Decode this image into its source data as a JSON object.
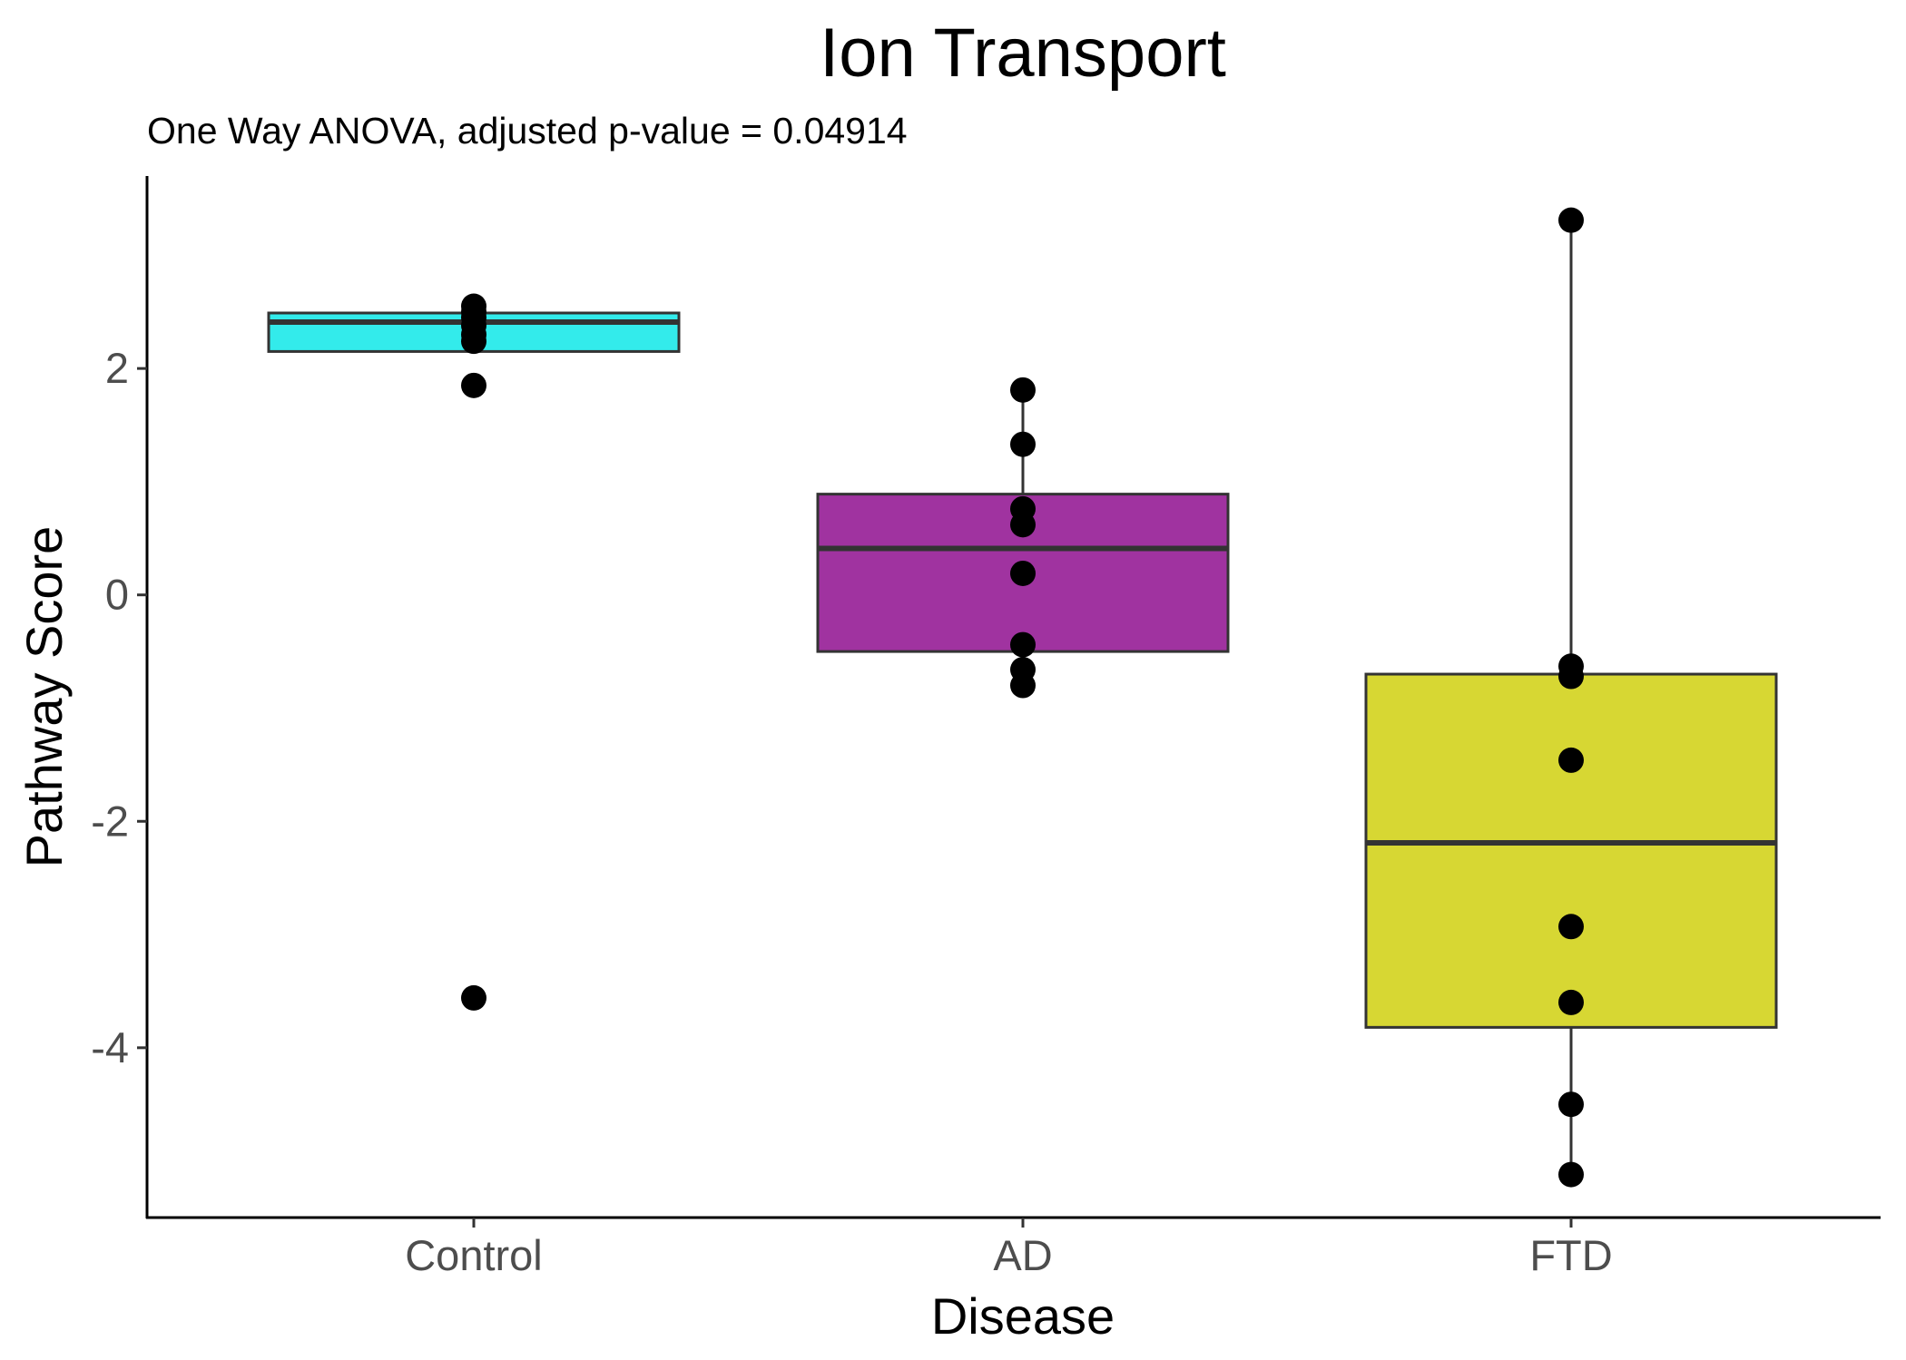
{
  "chart_data": {
    "type": "boxplot",
    "title": "Ion Transport",
    "subtitle": "One Way ANOVA, adjusted p-value = 0.04914",
    "xlabel": "Disease",
    "ylabel": "Pathway Score",
    "ylim": [
      -5.5,
      3.7
    ],
    "yticks": [
      -4,
      -2,
      0,
      2
    ],
    "ytick_labels": [
      "-4",
      "-2",
      "0",
      "2"
    ],
    "categories": [
      "Control",
      "AD",
      "FTD"
    ],
    "grid": false,
    "legend": "none",
    "groups": [
      {
        "name": "Control",
        "color": "#33EBEB",
        "q1": 2.15,
        "median": 2.41,
        "q3": 2.49,
        "whisker_low": 2.15,
        "whisker_high": 2.49,
        "points": [
          2.55,
          2.5,
          2.45,
          2.38,
          2.3,
          2.24,
          1.85,
          -3.56
        ]
      },
      {
        "name": "AD",
        "color": "#A033A0",
        "q1": -0.5,
        "median": 0.41,
        "q3": 0.89,
        "whisker_low": -0.82,
        "whisker_high": 1.81,
        "points": [
          1.81,
          1.33,
          0.76,
          0.62,
          0.19,
          -0.44,
          -0.66,
          -0.8
        ]
      },
      {
        "name": "FTD",
        "color": "#D7D733",
        "q1": -3.82,
        "median": -2.19,
        "q3": -0.7,
        "whisker_low": -5.12,
        "whisker_high": 3.31,
        "points": [
          3.31,
          -0.63,
          -0.72,
          -1.46,
          -2.93,
          -3.6,
          -4.5,
          -5.12
        ]
      }
    ]
  }
}
